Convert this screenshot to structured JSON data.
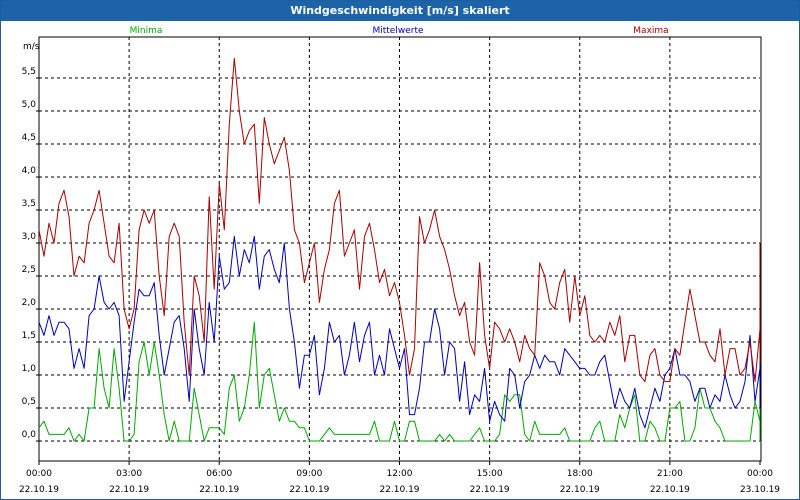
{
  "window": {
    "title": "Windgeschwindigkeit [m/s] skaliert"
  },
  "chart_data": {
    "type": "line",
    "title": "Windgeschwindigkeit [m/s] skaliert",
    "ylabel": "m/s",
    "ylim": [
      -0.3,
      6.0
    ],
    "xlim": [
      0,
      24
    ],
    "grid": true,
    "legend_placement": "top",
    "y_ticks": [
      "0,0",
      "0,5",
      "1,0",
      "1,5",
      "2,0",
      "2,5",
      "3,0",
      "3,5",
      "4,0",
      "4,5",
      "5,0",
      "5,5"
    ],
    "x_ticks": [
      {
        "time": "00:00",
        "date": "22.10.19"
      },
      {
        "time": "03:00",
        "date": "22.10.19"
      },
      {
        "time": "06:00",
        "date": "22.10.19"
      },
      {
        "time": "09:00",
        "date": "22.10.19"
      },
      {
        "time": "12:00",
        "date": "22.10.19"
      },
      {
        "time": "15:00",
        "date": "22.10.19"
      },
      {
        "time": "18:00",
        "date": "22.10.19"
      },
      {
        "time": "21:00",
        "date": "22.10.19"
      },
      {
        "time": "00:00",
        "date": "23.10.19"
      }
    ],
    "x_hours_step": 0.16667,
    "series": [
      {
        "name": "Minima",
        "color": "#00aa00",
        "values": [
          0.2,
          0.3,
          0.1,
          0.1,
          0.1,
          0.1,
          0.2,
          0.0,
          0.1,
          0.0,
          0.5,
          0.5,
          1.4,
          0.8,
          0.5,
          1.4,
          0.8,
          0.0,
          0.0,
          0.1,
          1.2,
          1.5,
          1.0,
          1.5,
          1.0,
          0.4,
          0.0,
          0.3,
          0.0,
          0.0,
          0.0,
          0.8,
          0.4,
          0.0,
          0.2,
          0.2,
          0.2,
          0.1,
          0.8,
          1.0,
          0.3,
          0.5,
          1.0,
          1.8,
          0.5,
          1.0,
          1.1,
          0.7,
          0.3,
          0.5,
          0.3,
          0.3,
          0.2,
          0.2,
          0.0,
          0.0,
          0.0,
          0.1,
          0.2,
          0.1,
          0.1,
          0.1,
          0.1,
          0.1,
          0.1,
          0.1,
          0.1,
          0.3,
          0.0,
          0.0,
          0.0,
          0.3,
          0.0,
          0.0,
          0.3,
          0.3,
          0.0,
          0.0,
          0.0,
          0.0,
          0.1,
          0.0,
          0.1,
          0.0,
          0.0,
          0.0,
          0.0,
          0.1,
          0.2,
          0.0,
          0.0,
          0.0,
          0.1,
          0.7,
          0.6,
          0.7,
          0.7,
          0.1,
          0.0,
          0.3,
          0.1,
          0.1,
          0.1,
          0.1,
          0.1,
          0.2,
          0.0,
          0.0,
          0.0,
          0.0,
          0.0,
          0.2,
          0.3,
          0.0,
          0.0,
          0.0,
          0.4,
          0.2,
          0.5,
          0.7,
          0.0,
          0.0,
          0.3,
          0.2,
          0.0,
          0.0,
          0.5,
          0.5,
          0.6,
          0.0,
          0.0,
          0.2,
          0.8,
          0.5,
          0.5,
          0.3,
          0.2,
          0.0,
          0.0,
          0.0,
          0.0,
          0.0,
          0.0,
          0.6,
          0.3,
          0.1,
          0.1,
          0.6,
          1.1,
          0.5,
          0.1,
          0.1,
          0.5,
          0.8,
          0.5,
          0.8,
          0.0,
          0.0,
          0.7,
          0.5
        ]
      },
      {
        "name": "Mittelwerte",
        "color": "#0000bb",
        "values": [
          1.8,
          1.6,
          1.9,
          1.6,
          1.8,
          1.8,
          1.7,
          1.1,
          1.4,
          1.1,
          1.9,
          2.0,
          2.5,
          2.1,
          2.0,
          2.1,
          1.9,
          0.6,
          1.2,
          1.8,
          2.3,
          2.2,
          2.2,
          2.4,
          1.6,
          1.0,
          1.4,
          1.8,
          1.9,
          1.4,
          0.6,
          2.0,
          1.4,
          1.0,
          2.1,
          1.5,
          2.8,
          2.3,
          2.4,
          3.1,
          2.5,
          2.9,
          2.7,
          3.1,
          2.3,
          2.8,
          2.9,
          2.6,
          2.4,
          3.0,
          2.0,
          1.5,
          0.8,
          1.3,
          1.3,
          1.6,
          0.7,
          1.1,
          1.8,
          1.5,
          1.6,
          1.0,
          1.3,
          1.8,
          1.2,
          1.6,
          1.8,
          1.0,
          1.3,
          1.0,
          1.7,
          1.4,
          1.1,
          1.4,
          0.4,
          0.4,
          0.8,
          1.5,
          1.5,
          2.0,
          1.7,
          1.0,
          1.5,
          1.4,
          0.6,
          1.2,
          0.4,
          0.7,
          0.6,
          1.1,
          0.3,
          0.6,
          0.4,
          0.3,
          1.1,
          1.0,
          0.5,
          0.9,
          1.0,
          1.3,
          1.1,
          1.3,
          1.2,
          1.2,
          1.0,
          1.4,
          1.3,
          1.2,
          1.1,
          1.1,
          1.0,
          1.0,
          1.2,
          1.3,
          0.9,
          0.5,
          0.8,
          0.6,
          0.5,
          0.8,
          0.4,
          0.2,
          0.5,
          0.8,
          0.6,
          1.0,
          1.1,
          1.4,
          1.0,
          1.0,
          0.9,
          0.6,
          0.8,
          0.8,
          0.5,
          0.7,
          0.6,
          1.0,
          0.7,
          0.5,
          0.6,
          0.9,
          1.6,
          0.6,
          1.1,
          1.6,
          1.7,
          1.5,
          1.8,
          2.0,
          1.6,
          1.0,
          0.5,
          0.7,
          0.9,
          1.1,
          0.8,
          0.5,
          0.9,
          1.0
        ]
      },
      {
        "name": "Maxima",
        "color": "#aa0000",
        "values": [
          3.2,
          2.8,
          3.3,
          3.0,
          3.6,
          3.8,
          3.4,
          2.5,
          2.8,
          2.7,
          3.3,
          3.5,
          3.8,
          3.3,
          2.8,
          2.7,
          3.3,
          2.0,
          1.7,
          2.0,
          3.2,
          3.5,
          3.3,
          3.5,
          2.5,
          1.9,
          3.1,
          3.3,
          3.1,
          1.8,
          1.0,
          2.5,
          2.2,
          1.5,
          3.7,
          2.3,
          3.9,
          3.2,
          4.8,
          5.8,
          5.0,
          4.5,
          4.7,
          4.8,
          3.6,
          4.9,
          4.5,
          4.2,
          4.4,
          4.6,
          4.1,
          3.2,
          3.0,
          2.4,
          2.7,
          3.0,
          2.1,
          2.6,
          2.9,
          3.6,
          3.8,
          2.8,
          3.0,
          3.2,
          2.3,
          3.1,
          3.3,
          2.9,
          2.4,
          2.6,
          2.2,
          2.4,
          2.1,
          1.6,
          1.0,
          1.4,
          3.4,
          3.0,
          3.2,
          3.5,
          3.1,
          2.9,
          2.6,
          2.2,
          1.9,
          2.1,
          1.5,
          1.3,
          2.7,
          1.6,
          1.1,
          1.8,
          1.7,
          1.5,
          1.7,
          1.5,
          1.2,
          1.6,
          1.4,
          1.3,
          2.7,
          2.5,
          2.1,
          2.0,
          2.4,
          2.6,
          1.8,
          2.5,
          1.9,
          2.2,
          1.6,
          1.5,
          1.6,
          1.5,
          1.8,
          1.6,
          1.9,
          1.2,
          1.6,
          1.6,
          1.0,
          0.9,
          1.3,
          1.4,
          1.0,
          0.9,
          0.9,
          1.4,
          1.3,
          1.8,
          2.3,
          1.9,
          1.5,
          1.5,
          1.3,
          1.2,
          1.7,
          1.0,
          1.4,
          1.4,
          1.0,
          1.1,
          1.5,
          0.9,
          1.7,
          3.0,
          2.2,
          2.5,
          2.8,
          3.0,
          2.0,
          1.6,
          1.2,
          1.6,
          1.5,
          1.3,
          1.5,
          1.7,
          1.2,
          1.3,
          1.4
        ]
      }
    ]
  }
}
